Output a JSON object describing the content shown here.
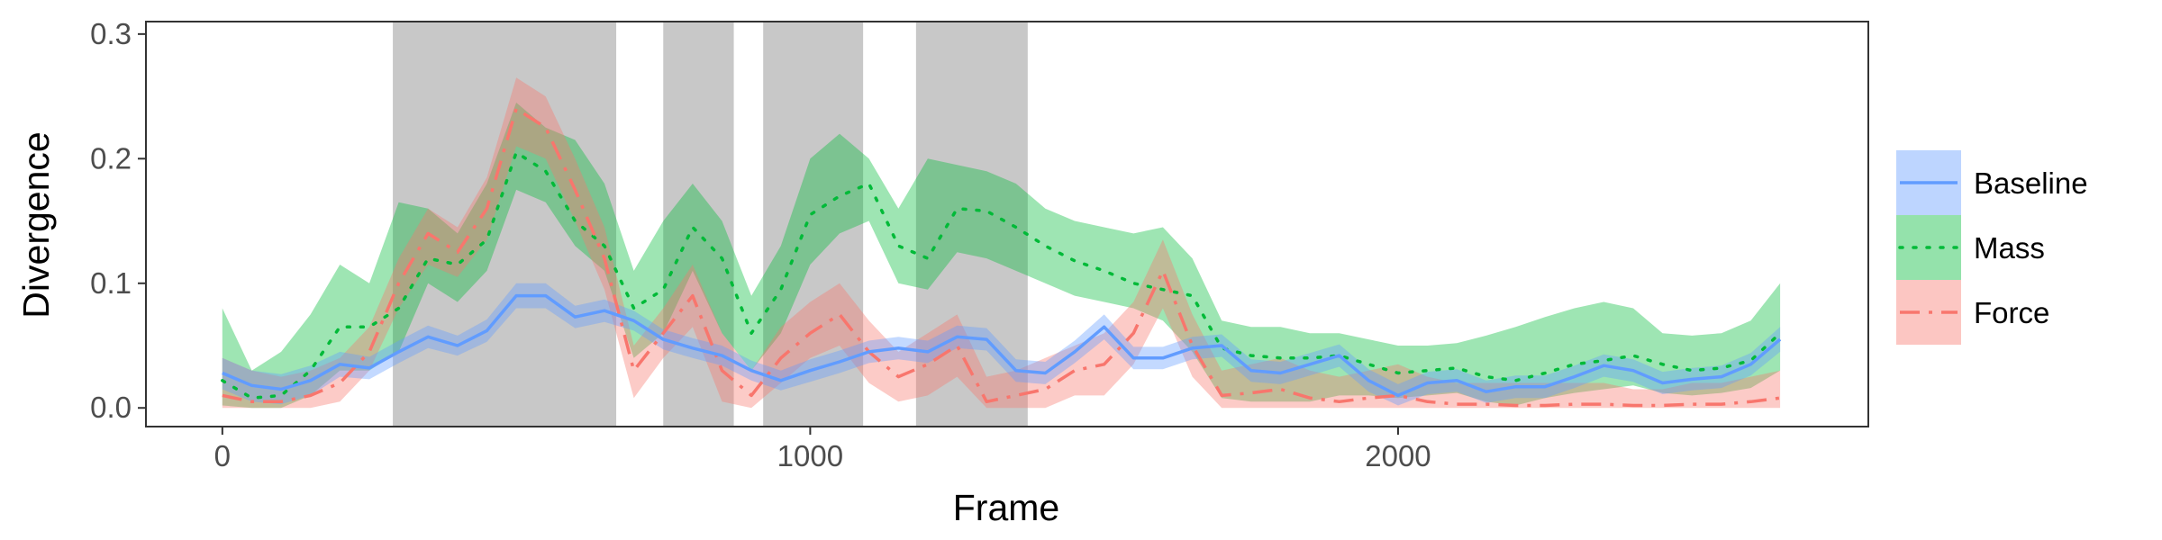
{
  "chart_data": {
    "type": "line",
    "title": "",
    "xlabel": "Frame",
    "ylabel": "Divergence",
    "xlim": [
      -130,
      2800
    ],
    "ylim": [
      -0.015,
      0.31
    ],
    "x_ticks": [
      0,
      1000,
      2000
    ],
    "x_tick_labels": [
      "0",
      "1000",
      "2000"
    ],
    "y_ticks": [
      0.0,
      0.1,
      0.2,
      0.3
    ],
    "y_tick_labels": [
      "0.0",
      "0.1",
      "0.2",
      "0.3"
    ],
    "grid": false,
    "legend_position": "right",
    "shaded_regions": [
      [
        290,
        670
      ],
      [
        750,
        870
      ],
      [
        920,
        1090
      ],
      [
        1180,
        1370
      ]
    ],
    "shaded_color": "#c8c8c8",
    "x": [
      0,
      50,
      100,
      150,
      200,
      250,
      300,
      350,
      400,
      450,
      500,
      550,
      600,
      650,
      700,
      750,
      800,
      850,
      900,
      950,
      1000,
      1050,
      1100,
      1150,
      1200,
      1250,
      1300,
      1350,
      1400,
      1450,
      1500,
      1550,
      1600,
      1650,
      1700,
      1750,
      1800,
      1850,
      1900,
      1950,
      2000,
      2050,
      2100,
      2150,
      2200,
      2250,
      2300,
      2350,
      2400,
      2450,
      2500,
      2550,
      2600,
      2650
    ],
    "series": [
      {
        "name": "Baseline",
        "color": "#619cff",
        "line_style": "solid",
        "values": [
          0.028,
          0.018,
          0.015,
          0.022,
          0.035,
          0.032,
          0.045,
          0.057,
          0.05,
          0.062,
          0.09,
          0.09,
          0.073,
          0.078,
          0.07,
          0.055,
          0.048,
          0.042,
          0.03,
          0.022,
          0.03,
          0.037,
          0.045,
          0.048,
          0.045,
          0.057,
          0.055,
          0.03,
          0.028,
          0.045,
          0.065,
          0.04,
          0.04,
          0.048,
          0.05,
          0.03,
          0.028,
          0.035,
          0.042,
          0.022,
          0.01,
          0.02,
          0.022,
          0.013,
          0.017,
          0.017,
          0.025,
          0.034,
          0.03,
          0.02,
          0.023,
          0.025,
          0.035,
          0.055
        ],
        "lower": [
          0.015,
          0.005,
          0.003,
          0.01,
          0.025,
          0.023,
          0.036,
          0.048,
          0.042,
          0.053,
          0.08,
          0.08,
          0.064,
          0.069,
          0.062,
          0.047,
          0.04,
          0.034,
          0.022,
          0.014,
          0.021,
          0.028,
          0.036,
          0.039,
          0.036,
          0.048,
          0.046,
          0.021,
          0.019,
          0.036,
          0.055,
          0.031,
          0.031,
          0.039,
          0.041,
          0.021,
          0.019,
          0.026,
          0.033,
          0.013,
          0.002,
          0.011,
          0.013,
          0.004,
          0.008,
          0.008,
          0.016,
          0.025,
          0.021,
          0.011,
          0.014,
          0.016,
          0.026,
          0.045
        ],
        "upper": [
          0.04,
          0.03,
          0.027,
          0.034,
          0.045,
          0.041,
          0.054,
          0.066,
          0.058,
          0.071,
          0.1,
          0.1,
          0.082,
          0.087,
          0.078,
          0.063,
          0.056,
          0.05,
          0.038,
          0.03,
          0.039,
          0.046,
          0.054,
          0.057,
          0.054,
          0.066,
          0.064,
          0.039,
          0.037,
          0.054,
          0.075,
          0.049,
          0.049,
          0.057,
          0.059,
          0.039,
          0.037,
          0.044,
          0.051,
          0.031,
          0.019,
          0.029,
          0.031,
          0.022,
          0.026,
          0.026,
          0.034,
          0.043,
          0.039,
          0.029,
          0.032,
          0.034,
          0.044,
          0.065
        ]
      },
      {
        "name": "Mass",
        "color": "#00ba38",
        "line_style": "dotted",
        "values": [
          0.022,
          0.008,
          0.01,
          0.03,
          0.065,
          0.065,
          0.08,
          0.12,
          0.115,
          0.135,
          0.205,
          0.19,
          0.15,
          0.13,
          0.08,
          0.095,
          0.145,
          0.12,
          0.06,
          0.095,
          0.155,
          0.17,
          0.18,
          0.13,
          0.12,
          0.16,
          0.158,
          0.145,
          0.13,
          0.118,
          0.11,
          0.1,
          0.095,
          0.09,
          0.048,
          0.042,
          0.04,
          0.04,
          0.042,
          0.035,
          0.028,
          0.03,
          0.032,
          0.025,
          0.022,
          0.028,
          0.035,
          0.038,
          0.042,
          0.035,
          0.03,
          0.032,
          0.038,
          0.06
        ],
        "lower": [
          0.002,
          0.0,
          0.0,
          0.01,
          0.03,
          0.03,
          0.045,
          0.1,
          0.085,
          0.11,
          0.175,
          0.165,
          0.13,
          0.11,
          0.04,
          0.06,
          0.11,
          0.06,
          0.03,
          0.06,
          0.115,
          0.14,
          0.15,
          0.1,
          0.095,
          0.125,
          0.12,
          0.11,
          0.1,
          0.09,
          0.085,
          0.08,
          0.07,
          0.045,
          0.008,
          0.005,
          0.005,
          0.005,
          0.01,
          0.01,
          0.008,
          0.01,
          0.012,
          0.005,
          0.002,
          0.008,
          0.012,
          0.015,
          0.018,
          0.012,
          0.01,
          0.012,
          0.016,
          0.03
        ],
        "upper": [
          0.08,
          0.03,
          0.045,
          0.075,
          0.115,
          0.1,
          0.165,
          0.16,
          0.14,
          0.18,
          0.245,
          0.225,
          0.215,
          0.18,
          0.11,
          0.15,
          0.18,
          0.15,
          0.09,
          0.13,
          0.2,
          0.22,
          0.2,
          0.16,
          0.2,
          0.195,
          0.19,
          0.18,
          0.16,
          0.15,
          0.145,
          0.14,
          0.145,
          0.12,
          0.07,
          0.065,
          0.065,
          0.06,
          0.06,
          0.055,
          0.05,
          0.05,
          0.052,
          0.058,
          0.065,
          0.073,
          0.08,
          0.085,
          0.08,
          0.06,
          0.058,
          0.06,
          0.07,
          0.1
        ]
      },
      {
        "name": "Force",
        "color": "#f8766d",
        "line_style": "dashdot",
        "values": [
          0.01,
          0.005,
          0.005,
          0.01,
          0.02,
          0.045,
          0.1,
          0.14,
          0.125,
          0.16,
          0.24,
          0.225,
          0.175,
          0.12,
          0.03,
          0.06,
          0.09,
          0.03,
          0.01,
          0.04,
          0.06,
          0.075,
          0.045,
          0.025,
          0.035,
          0.05,
          0.005,
          0.01,
          0.015,
          0.03,
          0.035,
          0.06,
          0.11,
          0.05,
          0.01,
          0.012,
          0.015,
          0.008,
          0.005,
          0.008,
          0.01,
          0.005,
          0.003,
          0.003,
          0.002,
          0.002,
          0.003,
          0.003,
          0.002,
          0.002,
          0.003,
          0.003,
          0.005,
          0.008
        ],
        "lower": [
          0.0,
          0.0,
          0.0,
          0.0,
          0.005,
          0.03,
          0.08,
          0.115,
          0.105,
          0.135,
          0.21,
          0.2,
          0.15,
          0.095,
          0.008,
          0.04,
          0.065,
          0.005,
          0.0,
          0.02,
          0.04,
          0.05,
          0.02,
          0.005,
          0.01,
          0.025,
          0.0,
          0.0,
          0.0,
          0.01,
          0.01,
          0.035,
          0.08,
          0.025,
          0.0,
          0.0,
          0.0,
          0.0,
          0.0,
          0.0,
          0.0,
          0.0,
          0.0,
          0.0,
          0.0,
          0.0,
          0.0,
          0.0,
          0.0,
          0.0,
          0.0,
          0.0,
          0.0,
          0.0
        ],
        "upper": [
          0.04,
          0.03,
          0.025,
          0.03,
          0.04,
          0.065,
          0.12,
          0.16,
          0.145,
          0.185,
          0.265,
          0.25,
          0.2,
          0.145,
          0.05,
          0.08,
          0.115,
          0.06,
          0.03,
          0.065,
          0.085,
          0.1,
          0.07,
          0.045,
          0.06,
          0.075,
          0.025,
          0.03,
          0.04,
          0.05,
          0.06,
          0.085,
          0.135,
          0.075,
          0.03,
          0.035,
          0.04,
          0.03,
          0.025,
          0.03,
          0.035,
          0.025,
          0.02,
          0.02,
          0.02,
          0.02,
          0.02,
          0.02,
          0.015,
          0.015,
          0.02,
          0.02,
          0.025,
          0.03
        ]
      }
    ]
  }
}
